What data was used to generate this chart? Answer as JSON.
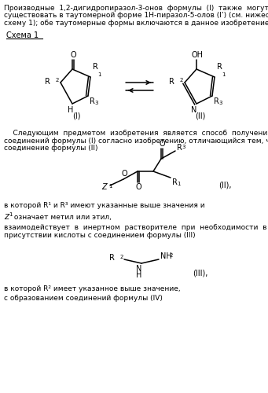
{
  "bg_color": "#ffffff",
  "figsize": [
    3.41,
    5.0
  ],
  "dpi": 100,
  "p1_lines": [
    "Производные  1,2-дигидропиразол-3-онов  формулы  (I)  также  могут",
    "существовать в таутомерной форме 1H-пиразол-5-олов (I’) (см. нижеследующую",
    "схему 1); обе таутомерные формы включаются в данное изобретение."
  ],
  "scheme_label": "Схема 1",
  "p2_lines": [
    "    Следующим  предметом  изобретения  является  способ  получения",
    "соединений формулы (I) согласно изобретению, отличающийся тем, что",
    "соединение формулы (II)"
  ],
  "text_IIlabel": "(II),",
  "text_Rdef": "в которой R¹ и R³ имеют указанные выше значения и",
  "text_Zdef_pre": "Z",
  "text_Zdef_post": " означает метил или этил,",
  "interact_lines": [
    "взаимодействует  в  инертном  растворителе  при  необходимости  в",
    "присутствии кислоты с соединением формулы (III)"
  ],
  "text_IIIlabel": "(III),",
  "text_R2def": "в которой R² имеет указанное выше значение,",
  "text_final": "с образованием соединений формулы (IV)"
}
